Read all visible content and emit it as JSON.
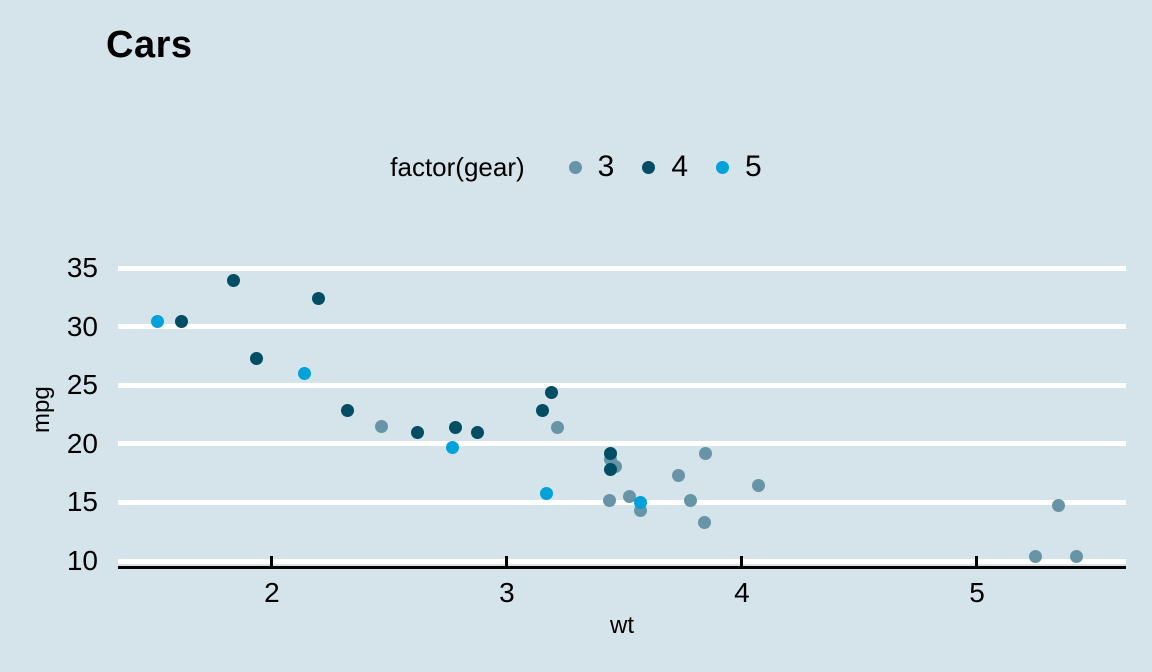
{
  "title": "Cars",
  "legend": {
    "title": "factor(gear)",
    "items": [
      {
        "label": "3",
        "color": "#6794a7"
      },
      {
        "label": "4",
        "color": "#014d64"
      },
      {
        "label": "5",
        "color": "#01a2d9"
      }
    ]
  },
  "colors": {
    "background": "#d5e4eb",
    "gridline": "#ffffff",
    "axis_line": "#000000",
    "text": "#000000"
  },
  "chart_data": {
    "type": "scatter",
    "title": "Cars",
    "xlabel": "wt",
    "ylabel": "mpg",
    "legend_title": "factor(gear)",
    "legend_position": "top-center",
    "grid": "horizontal-major-only",
    "x_ticks": [
      2,
      3,
      4,
      5
    ],
    "y_ticks": [
      10,
      15,
      20,
      25,
      30,
      35
    ],
    "xlim": [
      1.345,
      5.634
    ],
    "ylim": [
      10,
      35
    ],
    "series": [
      {
        "name": "3",
        "color": "#6794a7",
        "points": [
          [
            2.465,
            21.5
          ],
          [
            3.215,
            21.4
          ],
          [
            3.44,
            18.7
          ],
          [
            3.46,
            18.1
          ],
          [
            3.435,
            15.2
          ],
          [
            3.52,
            15.5
          ],
          [
            3.57,
            14.3
          ],
          [
            3.73,
            17.3
          ],
          [
            3.78,
            15.2
          ],
          [
            3.84,
            13.3
          ],
          [
            3.845,
            19.2
          ],
          [
            4.07,
            16.4
          ],
          [
            5.25,
            10.4
          ],
          [
            5.345,
            14.7
          ],
          [
            5.424,
            10.4
          ]
        ]
      },
      {
        "name": "4",
        "color": "#014d64",
        "points": [
          [
            1.615,
            30.4
          ],
          [
            1.835,
            33.9
          ],
          [
            1.935,
            27.3
          ],
          [
            2.2,
            32.4
          ],
          [
            2.32,
            22.8
          ],
          [
            2.62,
            21.0
          ],
          [
            2.78,
            21.4
          ],
          [
            2.875,
            21.0
          ],
          [
            3.15,
            22.8
          ],
          [
            3.19,
            24.4
          ],
          [
            3.44,
            19.2
          ],
          [
            3.44,
            17.8
          ]
        ]
      },
      {
        "name": "5",
        "color": "#01a2d9",
        "points": [
          [
            1.513,
            30.4
          ],
          [
            2.14,
            26.0
          ],
          [
            2.77,
            19.7
          ],
          [
            3.17,
            15.8
          ],
          [
            3.57,
            15.0
          ]
        ]
      }
    ]
  }
}
